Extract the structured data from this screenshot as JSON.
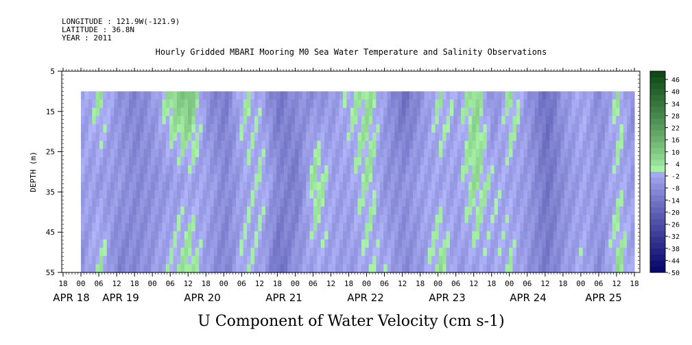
{
  "header": {
    "longitude": "LONGITUDE : 121.9W(-121.9)",
    "latitude": "LATITUDE : 36.8N",
    "year": "YEAR : 2011"
  },
  "chart_data": {
    "type": "heatmap",
    "title": "Hourly Gridded MBARI Mooring M0 Sea Water Temperature and Salinity Observations",
    "xlabel": "U Component of Water Velocity (cm s-1)",
    "ylabel": "DEPTH (m)",
    "y_ticks": [
      5,
      15,
      25,
      35,
      45,
      55
    ],
    "ylim": [
      5,
      55
    ],
    "data_depth_range": [
      10,
      55
    ],
    "x_hour_labels": [
      "18",
      "00",
      "06",
      "12",
      "18",
      "00",
      "06",
      "12",
      "18",
      "00",
      "06",
      "12",
      "18",
      "00",
      "06",
      "12",
      "18",
      "00",
      "06",
      "12",
      "18",
      "00",
      "06",
      "12",
      "18",
      "00",
      "06",
      "12",
      "18",
      "00",
      "06",
      "12",
      "18"
    ],
    "x_day_labels": [
      "APR 18",
      "APR 19",
      "APR 20",
      "APR 21",
      "APR 22",
      "APR 23",
      "APR 24",
      "APR 25"
    ],
    "colorbar": {
      "labels": [
        "46",
        "40",
        "34",
        "28",
        "22",
        "16",
        "10",
        "4",
        "-2",
        "-8",
        "-14",
        "-20",
        "-26",
        "-32",
        "-38",
        "-44",
        "-50"
      ],
      "range": [
        -50,
        50
      ],
      "step": 3
    },
    "time_series_hours": [
      0,
      6,
      12,
      18,
      24,
      30,
      36,
      42,
      48,
      54,
      60,
      66,
      72,
      78,
      84,
      90,
      96,
      102,
      108,
      114,
      120,
      126,
      132,
      138,
      144,
      150,
      156,
      162,
      168,
      174,
      180,
      186,
      192
    ],
    "u_surface": [
      null,
      -5,
      3,
      -8,
      -12,
      -6,
      6,
      12,
      -10,
      -14,
      2,
      -4,
      -16,
      -8,
      -10,
      -6,
      0,
      4,
      -6,
      -18,
      -8,
      2,
      -4,
      6,
      -10,
      4,
      -8,
      -18,
      -6,
      -2,
      -10,
      2,
      -12
    ],
    "u_mid": [
      null,
      -4,
      -6,
      -6,
      -10,
      -8,
      -6,
      -4,
      -4,
      -10,
      -4,
      0,
      -10,
      -14,
      4,
      -4,
      -4,
      2,
      -8,
      -8,
      -4,
      -4,
      -4,
      4,
      -2,
      -4,
      -6,
      -16,
      -8,
      -4,
      -6,
      -2,
      -6
    ],
    "u_bottom": [
      null,
      -8,
      2,
      -12,
      -10,
      -6,
      0,
      4,
      -6,
      -12,
      0,
      -4,
      -18,
      -6,
      -4,
      -4,
      -6,
      -2,
      -2,
      -10,
      -6,
      4,
      -6,
      -4,
      -4,
      0,
      -8,
      -14,
      -6,
      -2,
      -10,
      4,
      -6
    ]
  }
}
